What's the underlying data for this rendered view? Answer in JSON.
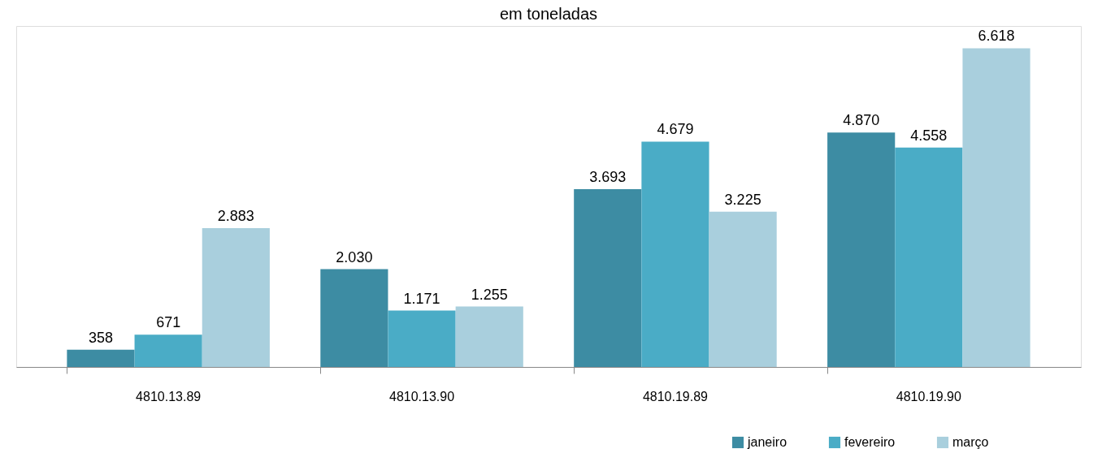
{
  "chart_data": {
    "type": "bar",
    "title": "em toneladas",
    "categories": [
      "4810.13.89",
      "4810.13.90",
      "4810.19.89",
      "4810.19.90"
    ],
    "series": [
      {
        "name": "janeiro",
        "color": "#3d8ca3",
        "values": [
          358,
          2030,
          3693,
          4870
        ],
        "value_labels": [
          "358",
          "2.030",
          "3.693",
          "4.870"
        ]
      },
      {
        "name": "fevereiro",
        "color": "#4aacc6",
        "values": [
          671,
          1171,
          4679,
          4558
        ],
        "value_labels": [
          "671",
          "1.171",
          "4.679",
          "4.558"
        ]
      },
      {
        "name": "março",
        "color": "#a9cfdd",
        "values": [
          2883,
          1255,
          3225,
          6618
        ],
        "value_labels": [
          "2.883",
          "1.255",
          "3.225",
          "6.618"
        ]
      }
    ],
    "legend": "bottom right",
    "grid": false
  }
}
